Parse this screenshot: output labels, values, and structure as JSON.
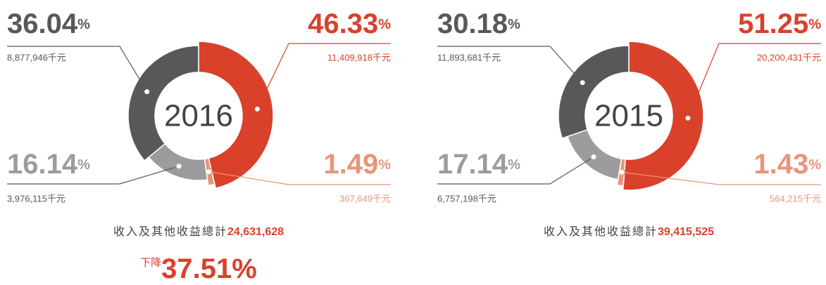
{
  "chart_data": [
    {
      "type": "pie",
      "title": "2016",
      "unit": "%",
      "values": [
        46.33,
        1.49,
        16.14,
        36.04
      ],
      "colors": [
        "#d9412b",
        "#e8957a",
        "#9c9c9f",
        "#58585a"
      ],
      "amount_labels": [
        "11,409,918千元",
        "367,649千元",
        "3,976,115千元",
        "8,877,946千元"
      ],
      "total_label": "收入及其他收益總計",
      "total_value": "24,631,628",
      "change_label": "下降",
      "change": 37.51
    },
    {
      "type": "pie",
      "title": "2015",
      "unit": "%",
      "values": [
        51.25,
        1.43,
        17.14,
        30.18
      ],
      "colors": [
        "#d9412b",
        "#e8957a",
        "#9c9c9f",
        "#58585a"
      ],
      "amount_labels": [
        "20,200,431千元",
        "564,215千元",
        "6,757,198千元",
        "11,893,681千元"
      ],
      "total_label": "收入及其他收益總計",
      "total_value": "39,415,525"
    }
  ]
}
